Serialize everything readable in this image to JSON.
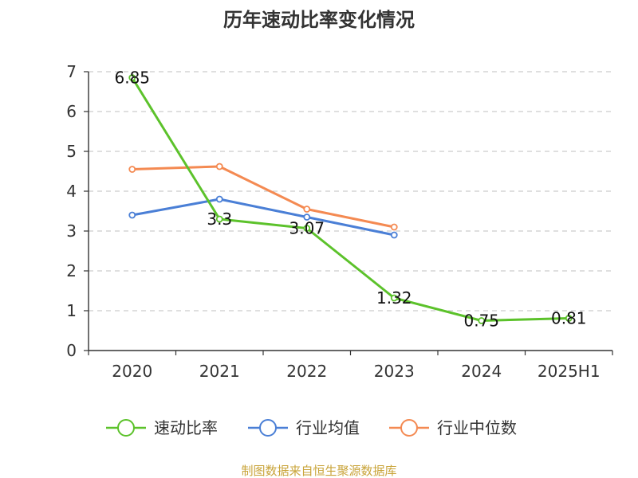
{
  "chart_data": {
    "type": "line",
    "title": "历年速动比率变化情况",
    "categories": [
      "2020",
      "2021",
      "2022",
      "2023",
      "2024",
      "2025H1"
    ],
    "ylim": [
      0,
      7
    ],
    "yticks": [
      "0",
      "1",
      "2",
      "3",
      "4",
      "5",
      "6",
      "7"
    ],
    "grid": "horizontal dashed",
    "legend_position": "bottom",
    "series": [
      {
        "name": "速动比率",
        "color": "#5cc22b",
        "values": [
          6.85,
          3.3,
          3.07,
          1.32,
          0.75,
          0.81
        ],
        "labels": [
          "6.85",
          "3.3",
          "3.07",
          "1.32",
          "0.75",
          "0.81"
        ]
      },
      {
        "name": "行业均值",
        "color": "#4a7fd6",
        "values": [
          3.4,
          3.8,
          3.35,
          2.9,
          null,
          null
        ]
      },
      {
        "name": "行业中位数",
        "color": "#f48a52",
        "values": [
          4.55,
          4.62,
          3.55,
          3.1,
          null,
          null
        ]
      }
    ]
  },
  "source": "制图数据来自恒生聚源数据库"
}
